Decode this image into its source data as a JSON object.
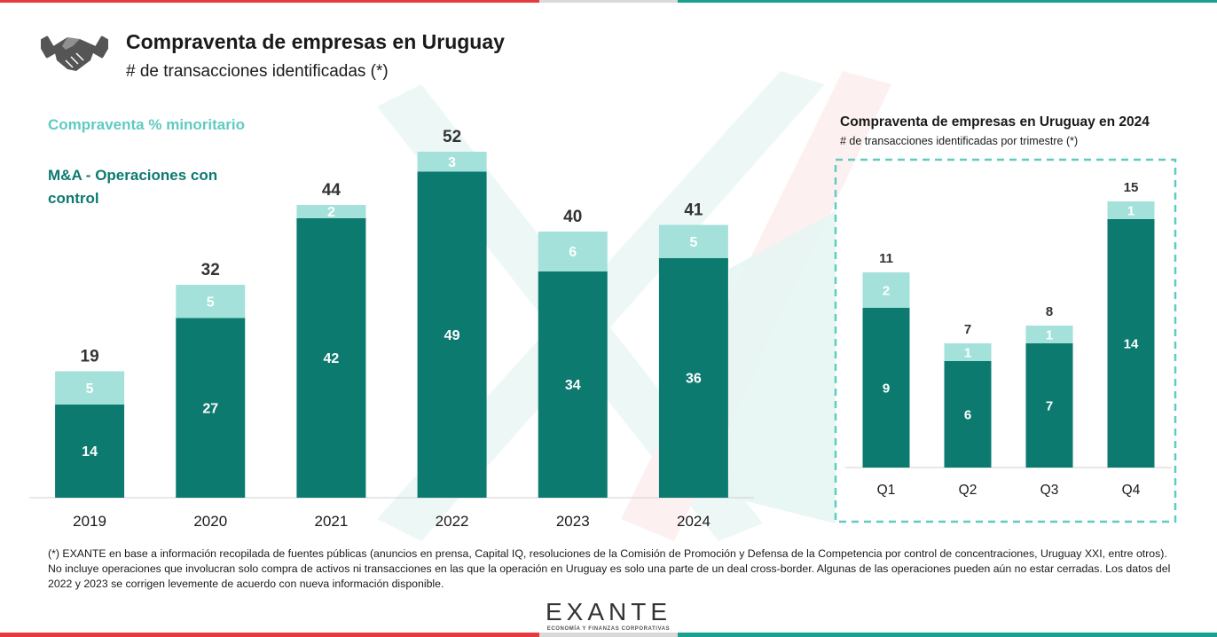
{
  "header": {
    "title": "Compraventa de empresas en Uruguay",
    "subtitle": "# de transacciones identificadas (*)",
    "icon": "handshake-icon"
  },
  "legend": {
    "minority_label": "Compraventa % minoritario",
    "control_label": "M&A - Operaciones con control"
  },
  "colors": {
    "control": "#0d7a70",
    "minority": "#a3e1da",
    "legend_minority_text": "#5fcbc1",
    "accent_red": "#e63a3e",
    "accent_teal": "#17a191"
  },
  "inset": {
    "title": "Compraventa de empresas en Uruguay en 2024",
    "subtitle": "# de transacciones identificadas por trimestre (*)"
  },
  "footnote": "(*) EXANTE en base a información recopilada de fuentes públicas (anuncios en prensa, Capital IQ, resoluciones de la Comisión de Promoción y Defensa de la Competencia por control de concentraciones, Uruguay XXI, entre otros). No incluye operaciones que involucran solo compra de activos ni transacciones en las que la operación en Uruguay es solo una parte de un deal cross-border. Algunas de las operaciones pueden aún no estar cerradas. Los datos del 2022 y 2023 se corrigen levemente de acuerdo con nueva información disponible.",
  "logo": {
    "name": "EXANTE",
    "tagline": "ECONOMÍA Y FINANZAS CORPORATIVAS"
  },
  "chart_data": [
    {
      "type": "bar",
      "stacked": true,
      "categories": [
        "2019",
        "2020",
        "2021",
        "2022",
        "2023",
        "2024"
      ],
      "series": [
        {
          "name": "M&A - Operaciones con control",
          "values": [
            14,
            27,
            42,
            49,
            34,
            36
          ]
        },
        {
          "name": "Compraventa % minoritario",
          "values": [
            5,
            5,
            2,
            3,
            6,
            5
          ]
        }
      ],
      "totals": [
        19,
        32,
        44,
        52,
        40,
        41
      ],
      "title": "Compraventa de empresas en Uruguay",
      "subtitle": "# de transacciones identificadas (*)",
      "xlabel": "",
      "ylabel": "",
      "ylim": [
        0,
        56
      ],
      "legend": "top-left",
      "grid": false
    },
    {
      "type": "bar",
      "stacked": true,
      "categories": [
        "Q1",
        "Q2",
        "Q3",
        "Q4"
      ],
      "series": [
        {
          "name": "M&A - Operaciones con control",
          "values": [
            9,
            6,
            7,
            14
          ]
        },
        {
          "name": "Compraventa % minoritario",
          "values": [
            2,
            1,
            1,
            1
          ]
        }
      ],
      "totals": [
        11,
        7,
        8,
        15
      ],
      "title": "Compraventa de empresas en Uruguay en 2024",
      "subtitle": "# de transacciones identificadas por trimestre (*)",
      "xlabel": "",
      "ylabel": "",
      "ylim": [
        0,
        16
      ],
      "grid": false
    }
  ]
}
